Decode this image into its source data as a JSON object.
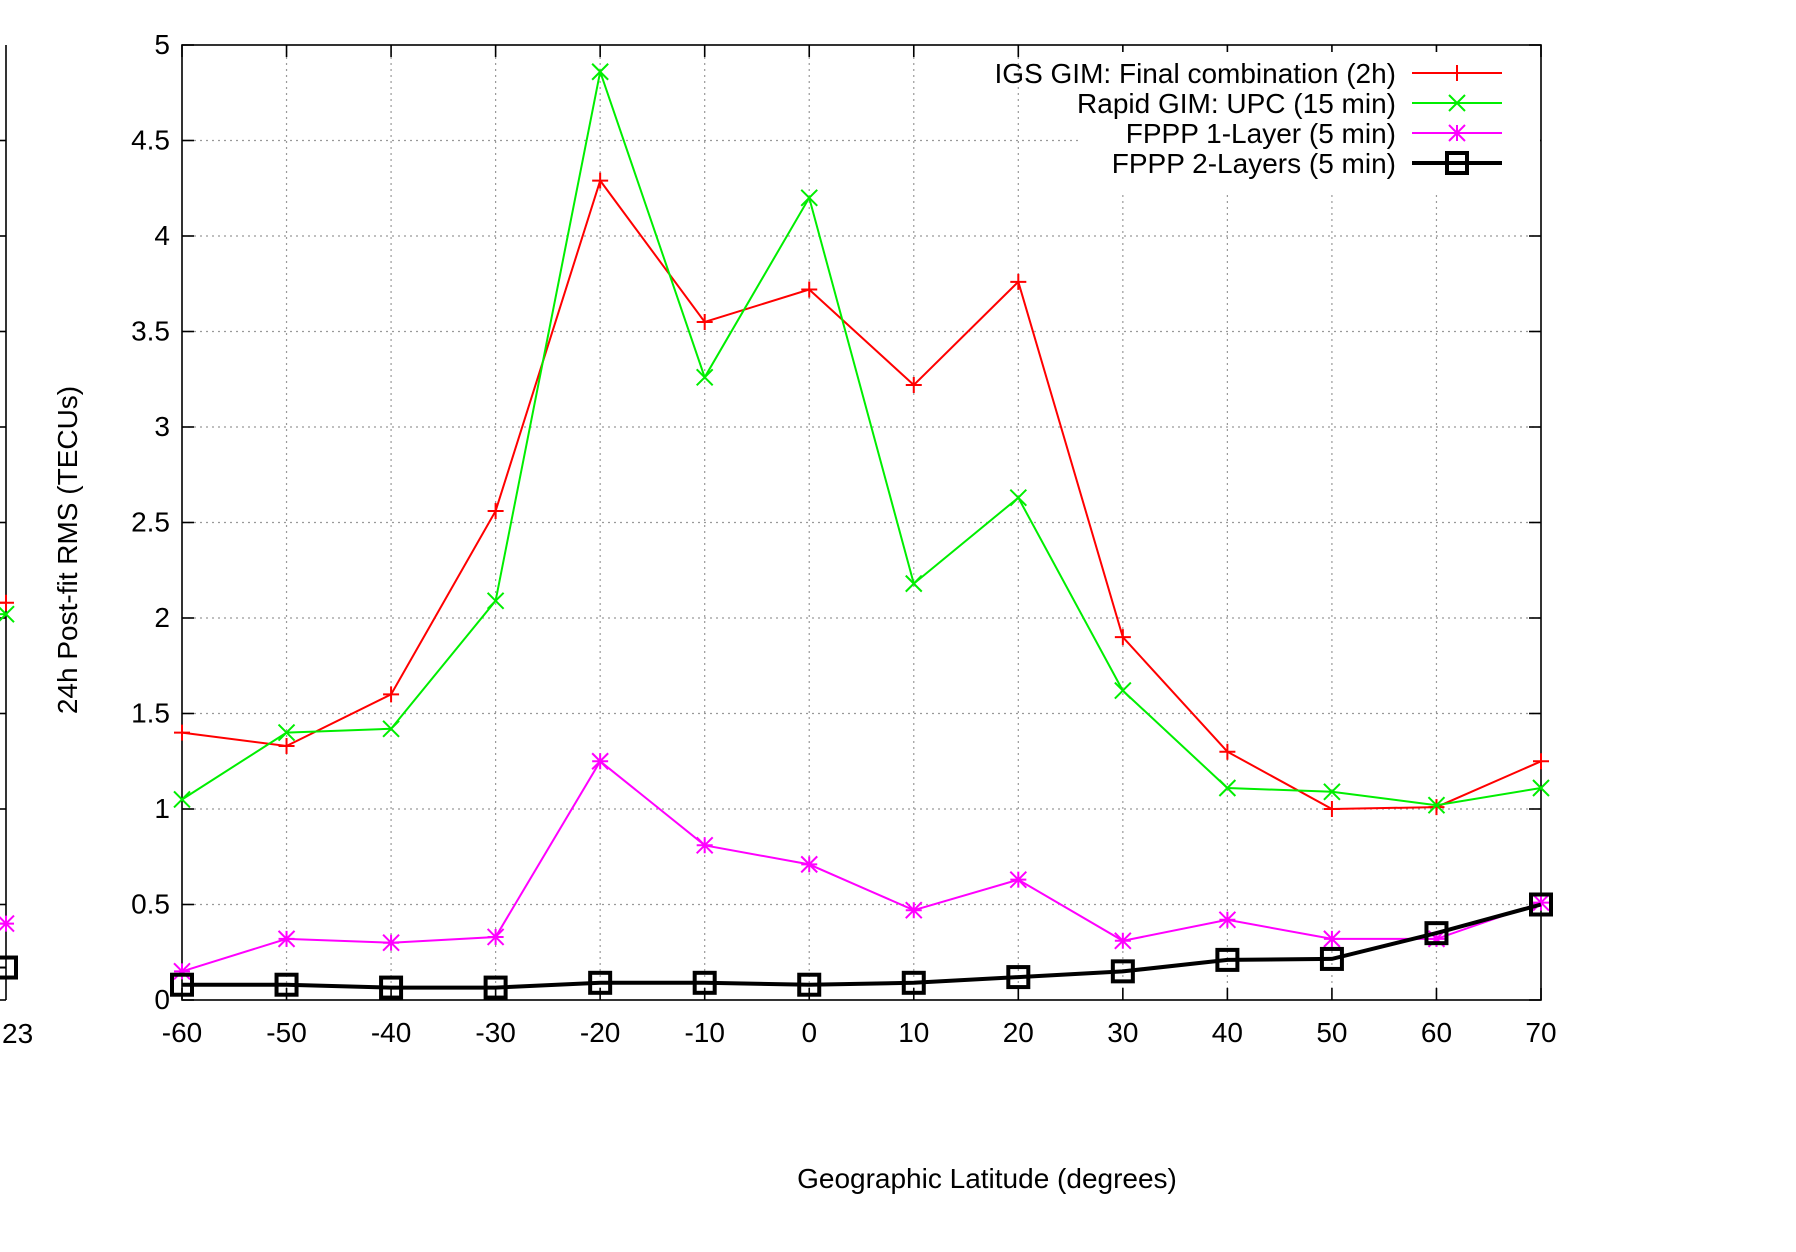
{
  "chart_data": [
    {
      "type": "line",
      "partial": true,
      "series_colors": [
        "#ff0000",
        "#00ee00",
        "#ff00ff",
        "#000000"
      ],
      "visible_tick_label": "23",
      "points": [
        {
          "series": "IGS GIM: Final combination (2h)",
          "y": 2.08
        },
        {
          "series": "Rapid GIM: UPC (15 min)",
          "y": 2.02
        },
        {
          "series": "FPPP 1-Layer (5 min)",
          "y": 0.4
        },
        {
          "series": "FPPP 2-Layers (5 min)",
          "y": 0.17
        }
      ]
    },
    {
      "type": "line",
      "title": "",
      "xlabel": "Geographic Latitude (degrees)",
      "ylabel": "24h Post-fit RMS (TECUs)",
      "xlim": [
        -60,
        70
      ],
      "ylim": [
        0,
        5
      ],
      "xticks": [
        -60,
        -50,
        -40,
        -30,
        -20,
        -10,
        0,
        10,
        20,
        30,
        40,
        50,
        60,
        70
      ],
      "yticks": [
        0,
        0.5,
        1,
        1.5,
        2,
        2.5,
        3,
        3.5,
        4,
        4.5,
        5
      ],
      "ytick_labels": [
        "0",
        "0.5",
        "1",
        "1.5",
        "2",
        "2.5",
        "3",
        "3.5",
        "4",
        "4.5",
        "5"
      ],
      "grid": true,
      "legend_position": "top-right",
      "x": [
        -60,
        -50,
        -40,
        -30,
        -20,
        -10,
        0,
        10,
        20,
        30,
        40,
        50,
        60,
        70
      ],
      "series": [
        {
          "name": "IGS GIM: Final combination (2h)",
          "color": "#ff0000",
          "marker": "plus",
          "values": [
            1.4,
            1.33,
            1.6,
            2.56,
            4.29,
            3.55,
            3.72,
            3.22,
            3.76,
            1.9,
            1.3,
            1.0,
            1.01,
            1.25
          ]
        },
        {
          "name": "Rapid GIM: UPC (15 min)",
          "color": "#00ee00",
          "marker": "cross",
          "values": [
            1.05,
            1.4,
            1.42,
            2.09,
            4.86,
            3.26,
            4.2,
            2.18,
            2.63,
            1.62,
            1.11,
            1.09,
            1.02,
            1.11
          ]
        },
        {
          "name": "FPPP 1-Layer (5 min)",
          "color": "#ff00ff",
          "marker": "star",
          "values": [
            0.15,
            0.32,
            0.3,
            0.33,
            1.25,
            0.81,
            0.71,
            0.47,
            0.63,
            0.31,
            0.42,
            0.32,
            0.32,
            0.51
          ]
        },
        {
          "name": "FPPP 2-Layers (5 min)",
          "color": "#000000",
          "marker": "square",
          "values": [
            0.08,
            0.08,
            0.065,
            0.065,
            0.09,
            0.09,
            0.08,
            0.09,
            0.12,
            0.15,
            0.21,
            0.215,
            0.35,
            0.5
          ]
        }
      ]
    }
  ]
}
